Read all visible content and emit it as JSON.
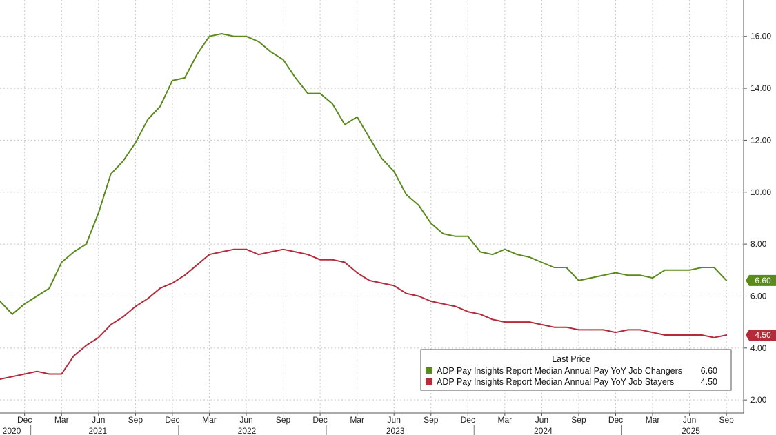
{
  "chart_data": {
    "type": "line",
    "x": [
      "2020-10",
      "2020-11",
      "2020-12",
      "2021-01",
      "2021-02",
      "2021-03",
      "2021-04",
      "2021-05",
      "2021-06",
      "2021-07",
      "2021-08",
      "2021-09",
      "2021-10",
      "2021-11",
      "2021-12",
      "2022-01",
      "2022-02",
      "2022-03",
      "2022-04",
      "2022-05",
      "2022-06",
      "2022-07",
      "2022-08",
      "2022-09",
      "2022-10",
      "2022-11",
      "2022-12",
      "2023-01",
      "2023-02",
      "2023-03",
      "2023-04",
      "2023-05",
      "2023-06",
      "2023-07",
      "2023-08",
      "2023-09",
      "2023-10",
      "2023-11",
      "2023-12",
      "2024-01",
      "2024-02",
      "2024-03",
      "2024-04",
      "2024-05",
      "2024-06",
      "2024-07",
      "2024-08",
      "2024-09",
      "2024-10",
      "2024-11",
      "2024-12",
      "2025-01",
      "2025-02",
      "2025-03",
      "2025-04",
      "2025-05",
      "2025-06",
      "2025-07",
      "2025-08",
      "2025-09"
    ],
    "series": [
      {
        "name": "ADP Pay Insights Report Median Annual Pay YoY Job Changers",
        "color": "#5a8a1c",
        "last_value": "6.60",
        "values": [
          5.8,
          5.3,
          5.7,
          6.0,
          6.3,
          7.3,
          7.7,
          8.0,
          9.2,
          10.7,
          11.2,
          11.9,
          12.8,
          13.3,
          14.3,
          14.4,
          15.3,
          16.0,
          16.1,
          16.0,
          16.0,
          15.8,
          15.4,
          15.1,
          14.4,
          13.8,
          13.8,
          13.4,
          12.6,
          12.9,
          12.1,
          11.3,
          10.8,
          9.9,
          9.5,
          8.8,
          8.4,
          8.3,
          8.3,
          7.7,
          7.6,
          7.8,
          7.6,
          7.5,
          7.3,
          7.1,
          7.1,
          6.6,
          6.7,
          6.8,
          6.9,
          6.8,
          6.8,
          6.7,
          7.0,
          7.0,
          7.0,
          7.1,
          7.1,
          6.6
        ]
      },
      {
        "name": "ADP Pay Insights Report Median Annual Pay YoY Job Stayers",
        "color": "#b22c3c",
        "last_value": "4.50",
        "values": [
          2.8,
          2.9,
          3.0,
          3.1,
          3.0,
          3.0,
          3.7,
          4.1,
          4.4,
          4.9,
          5.2,
          5.6,
          5.9,
          6.3,
          6.5,
          6.8,
          7.2,
          7.6,
          7.7,
          7.8,
          7.8,
          7.6,
          7.7,
          7.8,
          7.7,
          7.6,
          7.4,
          7.4,
          7.3,
          6.9,
          6.6,
          6.5,
          6.4,
          6.1,
          6.0,
          5.8,
          5.7,
          5.6,
          5.4,
          5.3,
          5.1,
          5.0,
          5.0,
          5.0,
          4.9,
          4.8,
          4.8,
          4.7,
          4.7,
          4.7,
          4.6,
          4.7,
          4.7,
          4.6,
          4.5,
          4.5,
          4.5,
          4.5,
          4.4,
          4.5
        ]
      }
    ],
    "y_ticks": [
      "2.00",
      "4.00",
      "6.00",
      "8.00",
      "10.00",
      "12.00",
      "14.00",
      "16.00"
    ],
    "ylim": [
      1.5,
      17.4
    ],
    "x_month_labels": [
      {
        "label": "Dec",
        "x": "2020-12"
      },
      {
        "label": "Mar",
        "x": "2021-03"
      },
      {
        "label": "Jun",
        "x": "2021-06"
      },
      {
        "label": "Sep",
        "x": "2021-09"
      },
      {
        "label": "Dec",
        "x": "2021-12"
      },
      {
        "label": "Mar",
        "x": "2022-03"
      },
      {
        "label": "Jun",
        "x": "2022-06"
      },
      {
        "label": "Sep",
        "x": "2022-09"
      },
      {
        "label": "Dec",
        "x": "2022-12"
      },
      {
        "label": "Mar",
        "x": "2023-03"
      },
      {
        "label": "Jun",
        "x": "2023-06"
      },
      {
        "label": "Sep",
        "x": "2023-09"
      },
      {
        "label": "Dec",
        "x": "2023-12"
      },
      {
        "label": "Mar",
        "x": "2024-03"
      },
      {
        "label": "Jun",
        "x": "2024-06"
      },
      {
        "label": "Sep",
        "x": "2024-09"
      },
      {
        "label": "Dec",
        "x": "2024-12"
      },
      {
        "label": "Mar",
        "x": "2025-03"
      },
      {
        "label": "Jun",
        "x": "2025-06"
      },
      {
        "label": "Sep",
        "x": "2025-09"
      }
    ],
    "x_year_labels": [
      "2020",
      "2021",
      "2022",
      "2023",
      "2024",
      "2025"
    ],
    "grid": true,
    "legend": {
      "title": "Last Price",
      "position": "bottom-right",
      "entries": [
        {
          "name": "ADP Pay Insights Report Median Annual Pay YoY Job Changers",
          "value": "6.60",
          "color": "#5a8a1c"
        },
        {
          "name": "ADP Pay Insights Report Median Annual Pay YoY Job Stayers",
          "value": "4.50",
          "color": "#b22c3c"
        }
      ]
    }
  }
}
